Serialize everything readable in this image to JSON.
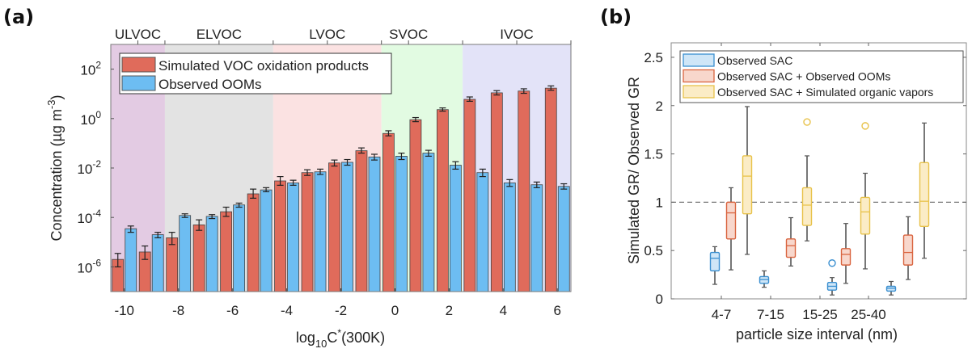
{
  "chart_data": [
    {
      "panel_label": "(a)",
      "type": "bar",
      "title": "",
      "xlabel": "log10C*(300K)",
      "xlabel_parts": {
        "pre": "log",
        "sub": "10",
        "mid": "C",
        "sup": "*",
        "post": "(300K)"
      },
      "ylabel": "Concentration (µg m-3)",
      "ylabel_parts": {
        "pre": "Concentration (µg m",
        "sup": "-3",
        "post": ")"
      },
      "yscale": "log",
      "ylim_log10": [
        -7,
        3
      ],
      "xlim": [
        -10.5,
        6.5
      ],
      "x_ticks": [
        -10,
        -8,
        -6,
        -4,
        -2,
        0,
        2,
        4,
        6
      ],
      "y_ticks_log10": [
        2,
        0,
        -2,
        -4,
        -6
      ],
      "volatility_classes": [
        {
          "name": "ULVOC",
          "from": -10.5,
          "to": -8.5,
          "color": "#e3cbe3"
        },
        {
          "name": "ELVOC",
          "from": -8.5,
          "to": -4.5,
          "color": "#e3e3e3"
        },
        {
          "name": "LVOC",
          "from": -4.5,
          "to": -0.5,
          "color": "#fbe2e2"
        },
        {
          "name": "SVOC",
          "from": -0.5,
          "to": 2.5,
          "color": "#e2fbe2"
        },
        {
          "name": "IVOC",
          "from": 2.5,
          "to": 6.5,
          "color": "#e3e3f8"
        }
      ],
      "top_ticks": [
        -9.5,
        -8.5,
        -6.5,
        -4.5,
        -2.5,
        -0.5,
        0.5,
        2.5,
        4.5,
        6.5
      ],
      "top_labels": [
        {
          "name": "ULVOC",
          "x": -9.5
        },
        {
          "name": "ELVOC",
          "x": -6.5
        },
        {
          "name": "LVOC",
          "x": -2.5
        },
        {
          "name": "SVOC",
          "x": 0.5
        },
        {
          "name": "IVOC",
          "x": 4.5
        }
      ],
      "legend_position": "top-left",
      "x": [
        -10,
        -9,
        -8,
        -7,
        -6,
        -5,
        -4,
        -3,
        -2,
        -1,
        0,
        1,
        2,
        3,
        4,
        5,
        6
      ],
      "series": [
        {
          "name": "Simulated VOC oxidation products",
          "color": "#e06b5b",
          "values": [
            2e-06,
            4e-06,
            1.5e-05,
            5e-05,
            0.00017,
            0.0009,
            0.003,
            0.0065,
            0.016,
            0.05,
            0.25,
            0.9,
            2.3,
            6,
            11,
            13,
            17
          ],
          "err_low": [
            1e-06,
            2e-06,
            7e-06,
            2e-05,
            6e-05,
            0.0003,
            0.001,
            0.0015,
            0.004,
            0.01,
            0.05,
            0.15,
            0.3,
            1,
            2,
            2.5,
            3
          ],
          "err_high": [
            1.5e-06,
            3e-06,
            1e-05,
            3e-05,
            9e-05,
            0.0005,
            0.0015,
            0.002,
            0.005,
            0.015,
            0.07,
            0.2,
            0.4,
            1.5,
            2.5,
            3,
            4
          ]
        },
        {
          "name": "Observed OOMs",
          "color": "#6dbdf2",
          "values": [
            3.5e-05,
            2e-05,
            0.00012,
            0.00011,
            0.00032,
            0.0013,
            0.0025,
            0.007,
            0.017,
            0.028,
            0.03,
            0.04,
            0.013,
            0.0065,
            0.0025,
            0.0021,
            0.0018
          ],
          "err_low": [
            1e-05,
            5e-06,
            2e-05,
            2e-05,
            6e-05,
            0.0002,
            0.0005,
            0.0015,
            0.004,
            0.007,
            0.008,
            0.01,
            0.004,
            0.002,
            0.0007,
            0.0005,
            0.0004
          ],
          "err_high": [
            1e-05,
            5e-06,
            2e-05,
            2e-05,
            6e-05,
            0.0003,
            0.0007,
            0.002,
            0.005,
            0.008,
            0.01,
            0.012,
            0.005,
            0.0025,
            0.0009,
            0.0006,
            0.0005
          ]
        }
      ],
      "grid": false
    },
    {
      "panel_label": "(b)",
      "type": "box",
      "title": "",
      "xlabel": "particle size interval (nm)",
      "ylabel": "Simulated GR/ Observed GR",
      "ylim": [
        0,
        2.65
      ],
      "y_ticks": [
        0,
        0.5,
        1,
        1.5,
        2,
        2.5
      ],
      "y_tick_labels": [
        "0",
        "0.5",
        "1",
        "1.5",
        "2",
        "2.5"
      ],
      "categories": [
        "4-7",
        "7-15",
        "15-25",
        "25-40",
        ""
      ],
      "reference_line": {
        "y": 1,
        "style": "dashed",
        "color": "#777777"
      },
      "legend_position": "top",
      "grid": false,
      "series": [
        {
          "name": "Observed SAC",
          "edge_color": "#3a8fd0",
          "fill_color": "#cfe6f7",
          "boxes": [
            {
              "whisker_low": 0.15,
              "q1": 0.29,
              "median": 0.42,
              "q3": 0.48,
              "whisker_high": 0.54,
              "outliers": []
            },
            {
              "whisker_low": 0.12,
              "q1": 0.16,
              "median": 0.2,
              "q3": 0.23,
              "whisker_high": 0.29,
              "outliers": []
            },
            {
              "whisker_low": 0.04,
              "q1": 0.09,
              "median": 0.13,
              "q3": 0.17,
              "whisker_high": 0.22,
              "outliers": [
                0.37
              ]
            },
            {
              "whisker_low": 0.04,
              "q1": 0.08,
              "median": 0.11,
              "q3": 0.13,
              "whisker_high": 0.18,
              "outliers": []
            }
          ]
        },
        {
          "name": "Observed SAC + Observed OOMs",
          "edge_color": "#d9643f",
          "fill_color": "#f8d7cc",
          "boxes": [
            {
              "whisker_low": 0.3,
              "q1": 0.62,
              "median": 0.89,
              "q3": 1.0,
              "whisker_high": 1.15,
              "outliers": []
            },
            {
              "whisker_low": 0.34,
              "q1": 0.43,
              "median": 0.55,
              "q3": 0.62,
              "whisker_high": 0.84,
              "outliers": []
            },
            {
              "whisker_low": 0.16,
              "q1": 0.35,
              "median": 0.46,
              "q3": 0.52,
              "whisker_high": 0.78,
              "outliers": []
            },
            {
              "whisker_low": 0.2,
              "q1": 0.35,
              "median": 0.48,
              "q3": 0.66,
              "whisker_high": 0.85,
              "outliers": []
            }
          ]
        },
        {
          "name": "Observed SAC + Simulated organic vapors",
          "edge_color": "#e8c24a",
          "fill_color": "#fbecc6",
          "boxes": [
            {
              "whisker_low": 0.46,
              "q1": 0.88,
              "median": 1.27,
              "q3": 1.48,
              "whisker_high": 1.99,
              "outliers": []
            },
            {
              "whisker_low": 0.6,
              "q1": 0.76,
              "median": 0.97,
              "q3": 1.15,
              "whisker_high": 1.48,
              "outliers": [
                1.83
              ]
            },
            {
              "whisker_low": 0.31,
              "q1": 0.67,
              "median": 0.9,
              "q3": 1.05,
              "whisker_high": 1.3,
              "outliers": [
                1.79
              ]
            },
            {
              "whisker_low": 0.42,
              "q1": 0.75,
              "median": 1.01,
              "q3": 1.41,
              "whisker_high": 1.82,
              "outliers": []
            }
          ]
        }
      ]
    }
  ]
}
